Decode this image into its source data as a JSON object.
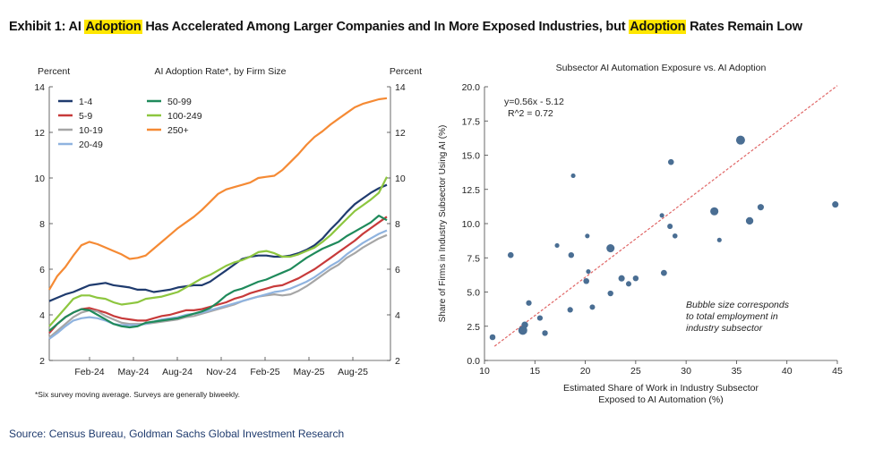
{
  "header": {
    "parts": [
      {
        "text": "Exhibit 1: AI ",
        "hl": false
      },
      {
        "text": "Adoption",
        "hl": true
      },
      {
        "text": " Has Accelerated Among Larger Companies and In More Exposed Industries, but ",
        "hl": false
      },
      {
        "text": "Adoption",
        "hl": true
      },
      {
        "text": " Rates Remain Low",
        "hl": false
      }
    ],
    "highlight_color": "#ffe600"
  },
  "footer": {
    "source": "Source: Census Bureau, Goldman Sachs Global Investment Research"
  },
  "chart_data": [
    {
      "type": "line",
      "title": "AI Adoption Rate*, by Firm Size",
      "ylabel_left": "Percent",
      "ylabel_right": "Percent",
      "xlabel": "",
      "ylim": [
        2,
        14
      ],
      "yticks": [
        2,
        4,
        6,
        8,
        10,
        12,
        14
      ],
      "x_tick_labels": [
        "Feb-24",
        "May-24",
        "Aug-24",
        "Nov-24",
        "Feb-25",
        "May-25",
        "Aug-25"
      ],
      "footnote": "*Six survey moving average. Surveys are generally biweekly.",
      "legend_position": "top-left",
      "grid": false,
      "series": [
        {
          "name": "1-4",
          "color": "#1f3b6e",
          "values": [
            4.6,
            4.75,
            4.9,
            5.0,
            5.15,
            5.3,
            5.35,
            5.4,
            5.3,
            5.25,
            5.2,
            5.1,
            5.1,
            5.0,
            5.05,
            5.1,
            5.2,
            5.25,
            5.3,
            5.3,
            5.45,
            5.7,
            5.95,
            6.2,
            6.45,
            6.55,
            6.6,
            6.6,
            6.55,
            6.55,
            6.6,
            6.7,
            6.85,
            7.05,
            7.35,
            7.75,
            8.1,
            8.5,
            8.85,
            9.1,
            9.35,
            9.55,
            9.7
          ]
        },
        {
          "name": "5-9",
          "color": "#c73a3a",
          "values": [
            3.2,
            3.6,
            3.9,
            4.1,
            4.25,
            4.3,
            4.2,
            4.1,
            3.95,
            3.85,
            3.8,
            3.75,
            3.75,
            3.85,
            3.95,
            4.0,
            4.1,
            4.2,
            4.2,
            4.25,
            4.35,
            4.45,
            4.55,
            4.7,
            4.8,
            4.95,
            5.05,
            5.15,
            5.25,
            5.3,
            5.45,
            5.6,
            5.8,
            6.0,
            6.25,
            6.5,
            6.75,
            7.0,
            7.25,
            7.55,
            7.8,
            8.05,
            8.3
          ]
        },
        {
          "name": "10-19",
          "color": "#a6a6a6",
          "values": [
            3.0,
            3.3,
            3.6,
            3.9,
            4.1,
            4.2,
            4.15,
            3.95,
            3.8,
            3.65,
            3.6,
            3.6,
            3.6,
            3.65,
            3.7,
            3.75,
            3.8,
            3.9,
            3.95,
            4.05,
            4.15,
            4.25,
            4.35,
            4.45,
            4.6,
            4.7,
            4.8,
            4.85,
            4.9,
            4.85,
            4.9,
            5.05,
            5.25,
            5.5,
            5.75,
            6.0,
            6.2,
            6.5,
            6.7,
            6.95,
            7.15,
            7.35,
            7.5
          ]
        },
        {
          "name": "20-49",
          "color": "#8fb3df",
          "values": [
            2.95,
            3.2,
            3.5,
            3.75,
            3.85,
            3.9,
            3.85,
            3.75,
            3.6,
            3.55,
            3.55,
            3.55,
            3.6,
            3.7,
            3.8,
            3.85,
            3.9,
            4.0,
            4.05,
            4.1,
            4.2,
            4.3,
            4.4,
            4.5,
            4.6,
            4.7,
            4.8,
            4.9,
            5.0,
            5.05,
            5.15,
            5.3,
            5.45,
            5.65,
            5.9,
            6.15,
            6.35,
            6.65,
            6.9,
            7.15,
            7.35,
            7.55,
            7.7
          ]
        },
        {
          "name": "50-99",
          "color": "#1f8a5b",
          "values": [
            3.3,
            3.6,
            3.9,
            4.1,
            4.25,
            4.2,
            4.0,
            3.8,
            3.6,
            3.5,
            3.45,
            3.5,
            3.65,
            3.7,
            3.75,
            3.8,
            3.85,
            3.95,
            4.05,
            4.15,
            4.3,
            4.55,
            4.85,
            5.05,
            5.15,
            5.3,
            5.45,
            5.55,
            5.7,
            5.85,
            6.0,
            6.25,
            6.5,
            6.7,
            6.9,
            7.05,
            7.2,
            7.45,
            7.65,
            7.85,
            8.05,
            8.35,
            8.15
          ]
        },
        {
          "name": "100-249",
          "color": "#8dc63f",
          "values": [
            3.5,
            3.9,
            4.3,
            4.7,
            4.85,
            4.85,
            4.75,
            4.7,
            4.55,
            4.45,
            4.5,
            4.55,
            4.7,
            4.75,
            4.8,
            4.9,
            5.0,
            5.2,
            5.4,
            5.6,
            5.75,
            5.95,
            6.15,
            6.3,
            6.4,
            6.55,
            6.75,
            6.8,
            6.7,
            6.55,
            6.55,
            6.65,
            6.8,
            6.95,
            7.2,
            7.5,
            7.85,
            8.2,
            8.55,
            8.8,
            9.05,
            9.35,
            10.05
          ]
        },
        {
          "name": "250+",
          "color": "#f58a34",
          "values": [
            5.1,
            5.7,
            6.1,
            6.6,
            7.05,
            7.2,
            7.1,
            6.95,
            6.8,
            6.65,
            6.45,
            6.5,
            6.6,
            6.9,
            7.2,
            7.5,
            7.8,
            8.05,
            8.3,
            8.6,
            8.95,
            9.3,
            9.5,
            9.6,
            9.7,
            9.8,
            10.0,
            10.05,
            10.1,
            10.35,
            10.7,
            11.05,
            11.45,
            11.8,
            12.05,
            12.35,
            12.6,
            12.85,
            13.1,
            13.25,
            13.35,
            13.45,
            13.5
          ]
        }
      ]
    },
    {
      "type": "scatter",
      "title": "Subsector AI Automation Exposure vs. AI Adoption",
      "xlabel": "Estimated Share of Work in Industry Subsector",
      "xlabel2": "Exposed to AI Automation (%)",
      "ylabel": "Share of Firms in Industry Subsector Using AI (%)",
      "xlim": [
        10,
        45
      ],
      "ylim": [
        0,
        20
      ],
      "xticks": [
        10,
        15,
        20,
        25,
        30,
        35,
        40,
        45
      ],
      "yticks": [
        "0.0",
        "2.5",
        "5.0",
        "7.5",
        "10.0",
        "12.5",
        "15.0",
        "17.5",
        "20.0"
      ],
      "equation": "y=0.56x - 5.12",
      "r2": "R^2 =  0.72",
      "trendline": {
        "slope": 0.56,
        "intercept": -5.12,
        "x_range": [
          11,
          45
        ],
        "color": "#e06666"
      },
      "annotation_lines": [
        "Bubble size corresponds",
        "to total employment in",
        "industry subsector"
      ],
      "bubble_color": "#4a6e93",
      "points": [
        {
          "x": 10.8,
          "y": 1.7,
          "size": 1.5
        },
        {
          "x": 12.6,
          "y": 7.7,
          "size": 1.5
        },
        {
          "x": 13.8,
          "y": 2.2,
          "size": 4
        },
        {
          "x": 14.0,
          "y": 2.6,
          "size": 2
        },
        {
          "x": 14.4,
          "y": 4.2,
          "size": 1.3
        },
        {
          "x": 15.5,
          "y": 3.1,
          "size": 1.3
        },
        {
          "x": 16.0,
          "y": 2.0,
          "size": 1.4
        },
        {
          "x": 17.2,
          "y": 8.4,
          "size": 0.8
        },
        {
          "x": 18.5,
          "y": 3.7,
          "size": 1.3
        },
        {
          "x": 18.6,
          "y": 7.7,
          "size": 1.4
        },
        {
          "x": 18.8,
          "y": 13.5,
          "size": 0.8
        },
        {
          "x": 20.1,
          "y": 5.8,
          "size": 1.5
        },
        {
          "x": 20.2,
          "y": 9.1,
          "size": 0.8
        },
        {
          "x": 20.3,
          "y": 6.5,
          "size": 0.8
        },
        {
          "x": 20.7,
          "y": 3.9,
          "size": 1.2
        },
        {
          "x": 22.5,
          "y": 8.2,
          "size": 3.2
        },
        {
          "x": 22.5,
          "y": 4.9,
          "size": 1.4
        },
        {
          "x": 23.6,
          "y": 6.0,
          "size": 1.8
        },
        {
          "x": 24.3,
          "y": 5.6,
          "size": 1.2
        },
        {
          "x": 25.0,
          "y": 6.0,
          "size": 1.4
        },
        {
          "x": 27.6,
          "y": 10.6,
          "size": 0.8
        },
        {
          "x": 27.8,
          "y": 6.4,
          "size": 1.6
        },
        {
          "x": 28.4,
          "y": 9.8,
          "size": 1.2
        },
        {
          "x": 28.5,
          "y": 14.5,
          "size": 1.5
        },
        {
          "x": 28.9,
          "y": 9.1,
          "size": 1.0
        },
        {
          "x": 32.8,
          "y": 10.9,
          "size": 3.2
        },
        {
          "x": 33.3,
          "y": 8.8,
          "size": 0.8
        },
        {
          "x": 35.4,
          "y": 16.1,
          "size": 4
        },
        {
          "x": 36.3,
          "y": 10.2,
          "size": 2.6
        },
        {
          "x": 37.4,
          "y": 11.2,
          "size": 1.8
        },
        {
          "x": 44.8,
          "y": 11.4,
          "size": 1.8
        }
      ]
    }
  ]
}
